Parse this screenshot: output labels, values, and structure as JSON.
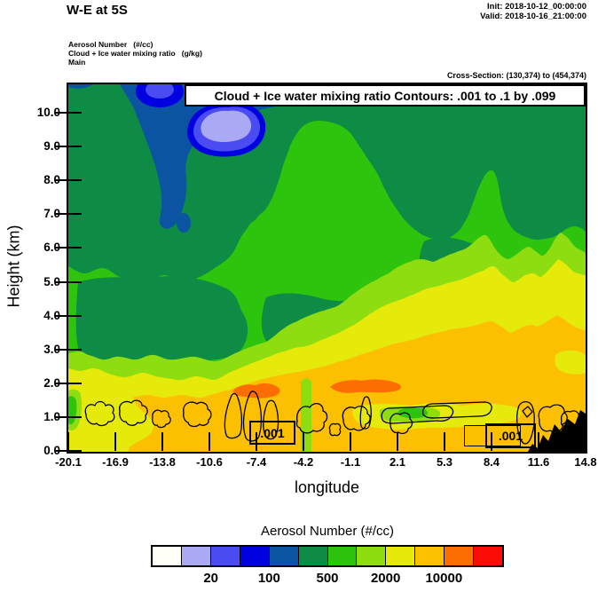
{
  "header": {
    "title": "W-E at 5S",
    "init_line": "Init: 2018-10-12_00:00:00",
    "valid_line": "Valid: 2018-10-16_21:00:00",
    "field_line1": "Aerosol Number   (#/cc)",
    "field_line2": "Cloud + Ice water mixing ratio   (g/kg)",
    "field_line3": "Main",
    "cross_section": "Cross-Section: (130,374) to (454,374)"
  },
  "plot": {
    "contour_title": "Cloud + Ice water mixing ratio Contours: .001 to .1 by .099",
    "contour_label": ".001"
  },
  "axes": {
    "x": {
      "label": "longitude",
      "tick_labels": [
        "-20.1",
        "-16.9",
        "-13.8",
        "-10.6",
        "-7.4",
        "-4.2",
        "-1.1",
        "2.1",
        "5.3",
        "8.4",
        "11.6",
        "14.8"
      ]
    },
    "y": {
      "label": "Height (km)",
      "tick_labels": [
        "0.0",
        "1.0",
        "2.0",
        "3.0",
        "4.0",
        "5.0",
        "6.0",
        "7.0",
        "8.0",
        "9.0",
        "10.0"
      ]
    }
  },
  "colorbar": {
    "title": "Aerosol Number  (#/cc)",
    "labels": [
      "20",
      "100",
      "500",
      "2000",
      "10000"
    ],
    "label_boundary_indices": [
      2,
      4,
      6,
      8,
      10
    ],
    "colors": [
      "#fffff8",
      "#a9a9f4",
      "#4b4bf2",
      "#0000e1",
      "#0b54a2",
      "#0e8b45",
      "#2ec40e",
      "#8edd10",
      "#e6ea0a",
      "#fdc001",
      "#fd6e02",
      "#fa0b05"
    ]
  },
  "chart_data": {
    "type": "heatmap",
    "subtype": "filled-contour-vertical-cross-section",
    "title": "Cloud + Ice water mixing ratio Contours: .001 to .1 by .099",
    "xlabel": "longitude",
    "ylabel": "Height (km)",
    "x_ticks": [
      -20.1,
      -16.9,
      -13.8,
      -10.6,
      -7.4,
      -4.2,
      -1.1,
      2.1,
      5.3,
      8.4,
      11.6,
      14.8
    ],
    "y_ticks": [
      0,
      1,
      2,
      3,
      4,
      5,
      6,
      7,
      8,
      9,
      10
    ],
    "xlim": [
      -20.1,
      14.8
    ],
    "ylim": [
      0,
      10.8
    ],
    "grid": false,
    "legend_position": "bottom-colorbar",
    "fill_field": {
      "name": "Aerosol Number",
      "units": "#/cc",
      "labeled_levels": [
        20,
        100,
        500,
        2000,
        10000
      ],
      "colors": [
        "#fffff8",
        "#a9a9f4",
        "#4b4bf2",
        "#0000e1",
        "#0b54a2",
        "#0e8b45",
        "#2ec40e",
        "#8edd10",
        "#e6ea0a",
        "#fdc001",
        "#fd6e02",
        "#fa0b05"
      ]
    },
    "line_field": {
      "name": "Cloud + Ice water mixing ratio",
      "units": "g/kg",
      "contour_from": 0.001,
      "contour_to": 0.1,
      "contour_by": 0.099,
      "labeled_value": ".001",
      "feature": "small closed cloud outlines scattered near 0.5-1.5 km height across the section"
    },
    "approx_structure": [
      {
        "height_km": "0-2",
        "aerosol": "5000-20000 #/cc amber band; orange maxima ~10000+ near 1.8-2.0 km around lon -8 and -2.5"
      },
      {
        "height_km": "2-3",
        "aerosol": "~2000 #/cc yellow band, rising toward the east"
      },
      {
        "height_km": "3-5",
        "aerosol": "~1000 #/cc yellow-green band"
      },
      {
        "height_km": "5-7",
        "aerosol": "~500 #/cc green band with green plume up to ~9 km near lon -8 to -4"
      },
      {
        "height_km": "7-10.8",
        "aerosol": "~100-200 #/cc dark green; clean pocket 20-100 #/cc (blue/lavender) near lon -14 to -11 at 8.5-10.5 km"
      },
      {
        "height_km": "0-0.8 east of lon ~12",
        "aerosol": "black terrain silhouette"
      }
    ],
    "init": "2018-10-12_00:00:00",
    "valid": "2018-10-16_21:00:00"
  }
}
